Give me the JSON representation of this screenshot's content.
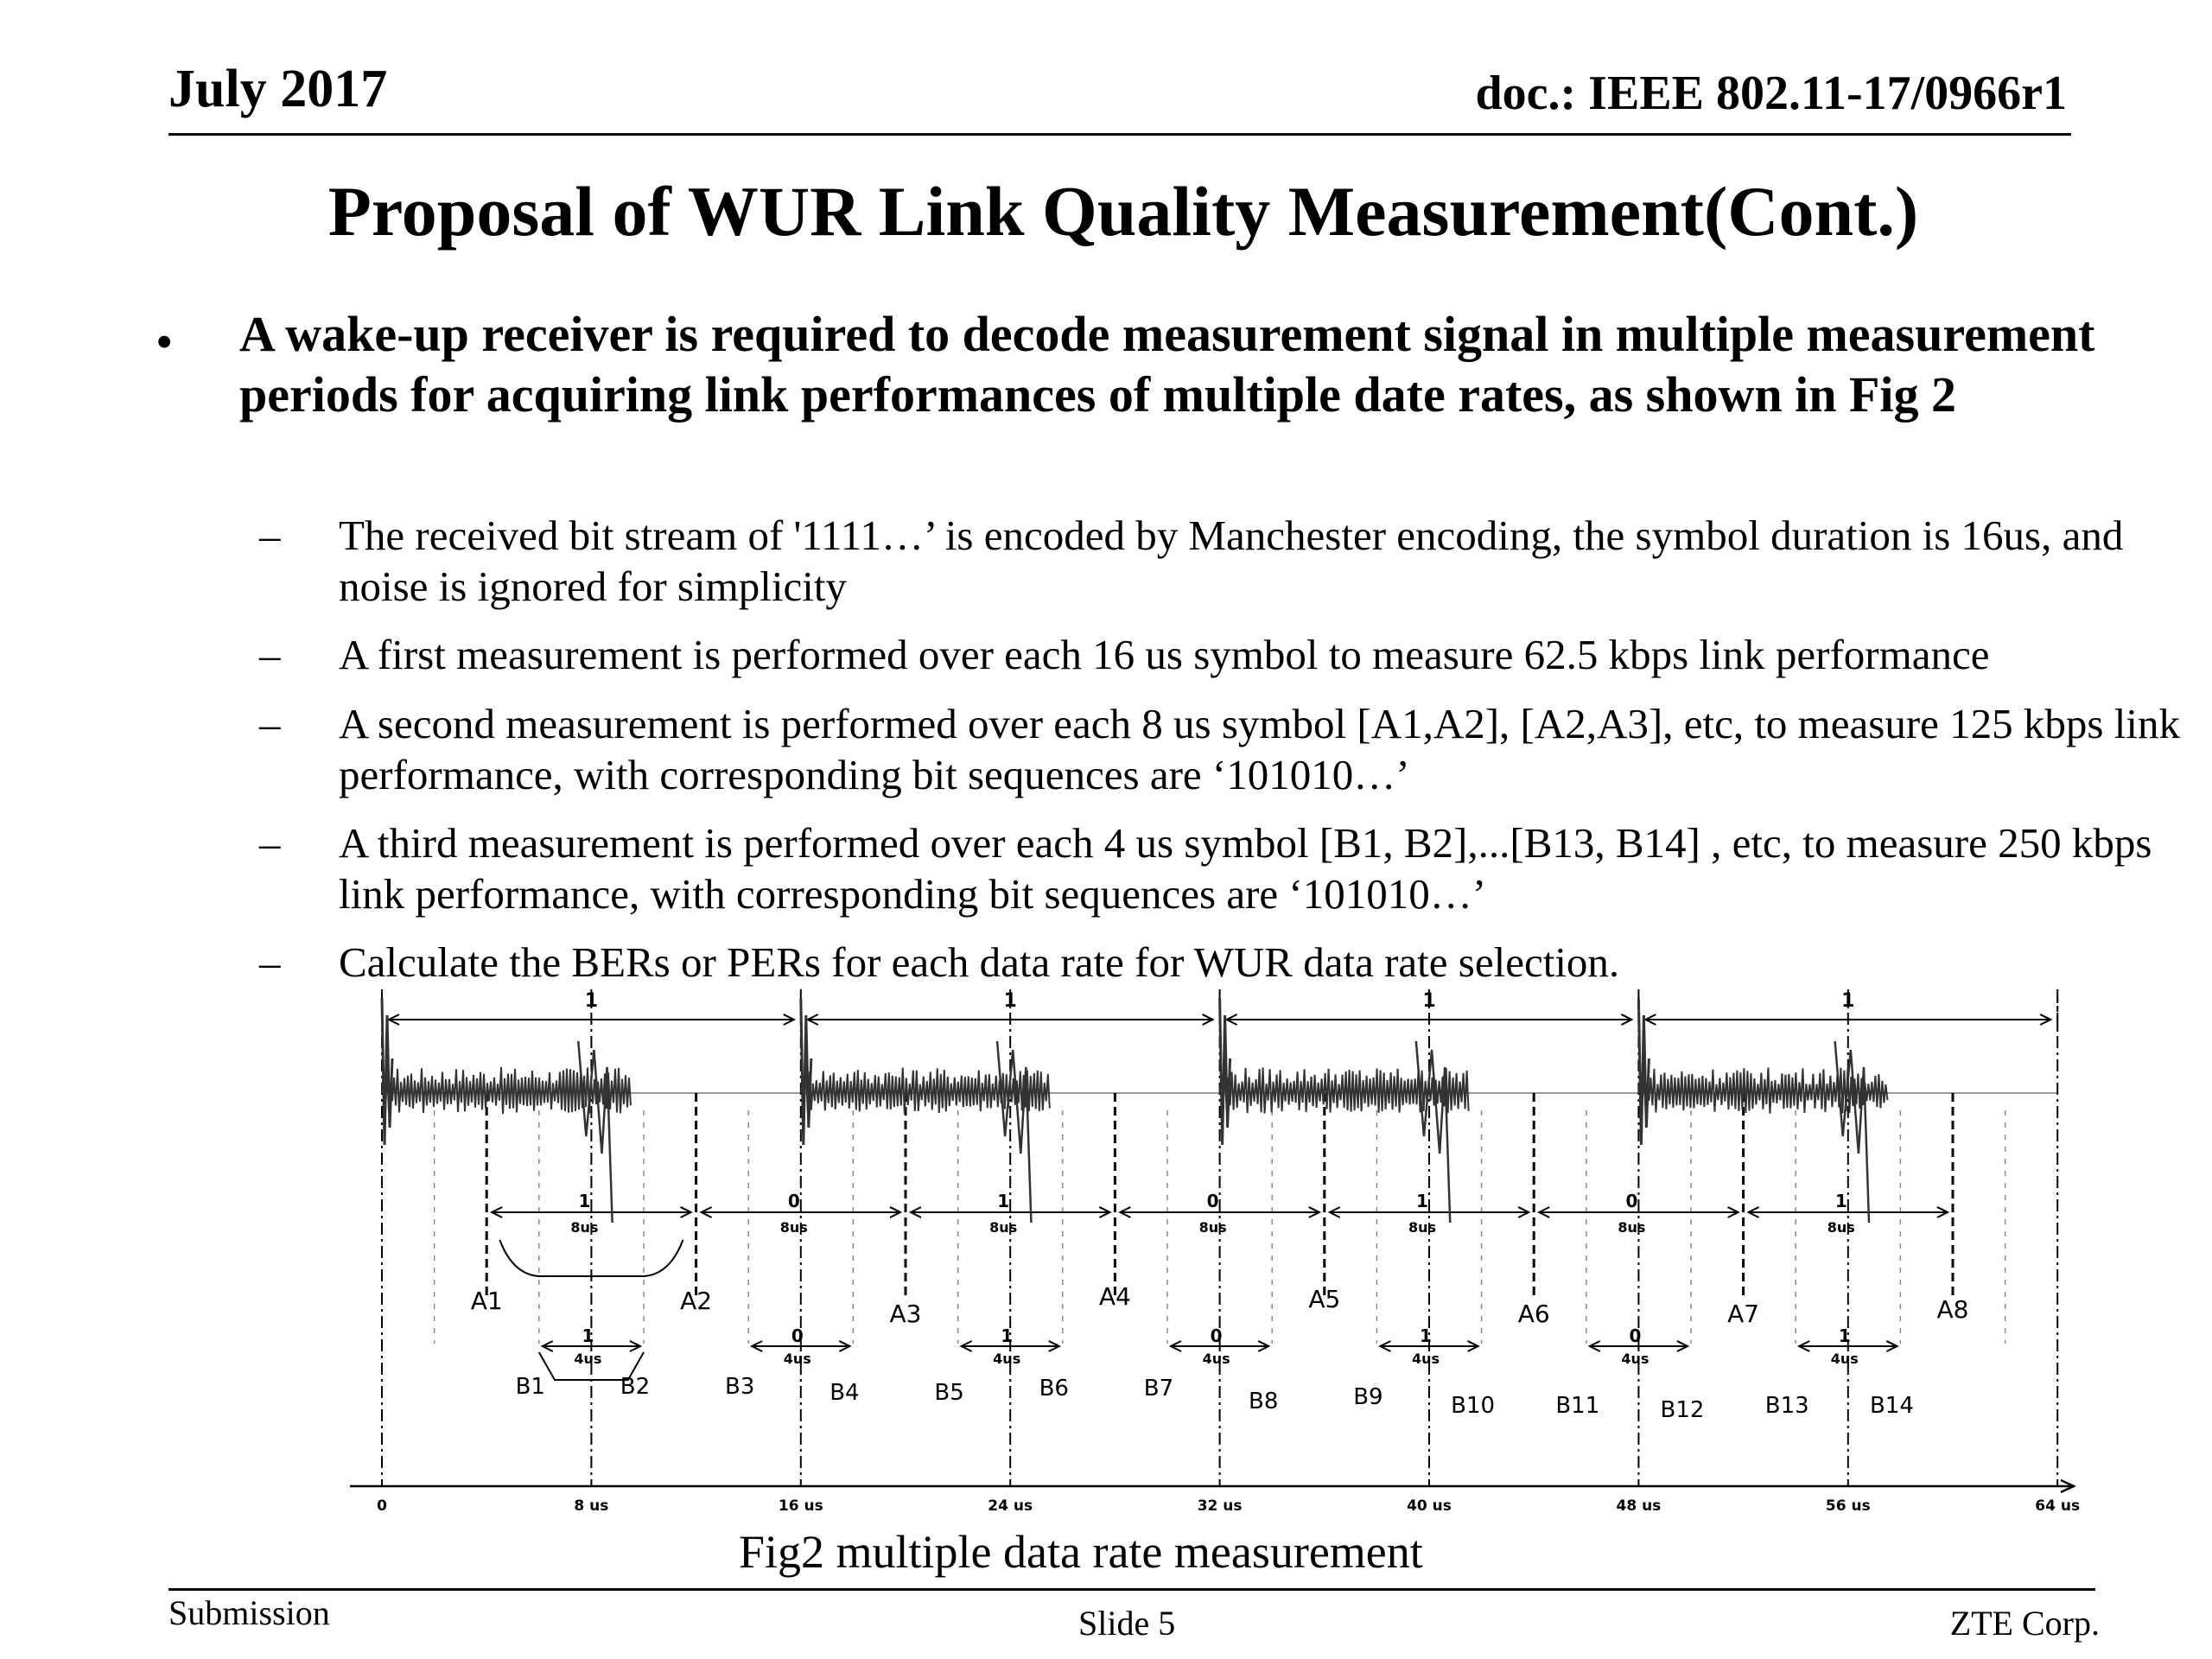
{
  "header": {
    "date": "July 2017",
    "doc": "doc.: IEEE 802.11-17/0966r1"
  },
  "title": "Proposal of WUR Link Quality Measurement(Cont.)",
  "bullet": {
    "marker": "•",
    "text": "A wake-up receiver is required to decode measurement signal in multiple measurement periods for acquiring link performances of multiple date rates, as shown in Fig 2"
  },
  "subbullets": [
    {
      "dash": "–",
      "text": "The received bit stream of  '1111…’ is encoded by Manchester encoding, the symbol duration is 16us, and noise is ignored for simplicity"
    },
    {
      "dash": "–",
      "text": "A first measurement is performed over each 16 us symbol to measure 62.5 kbps link performance"
    },
    {
      "dash": "–",
      "text": "A second measurement is performed over each 8 us symbol [A1,A2], [A2,A3], etc, to measure 125 kbps link performance, with corresponding bit sequences are ‘101010…’"
    },
    {
      "dash": "–",
      "text": "A third measurement is performed over each 4 us symbol [B1, B2],...[B13, B14] , etc, to measure 250 kbps link performance, with corresponding bit sequences are ‘101010…’"
    },
    {
      "dash": "–",
      "text": "Calculate the BERs or PERs for each data rate for WUR data rate selection."
    }
  ],
  "figure": {
    "symbol_bits": [
      "1",
      "1",
      "1",
      "1"
    ],
    "bits_8us": [
      "1",
      "0",
      "1",
      "0",
      "1",
      "0",
      "1"
    ],
    "label_8us": "8us",
    "a_labels": [
      "A1",
      "A2",
      "A3",
      "A4",
      "A5",
      "A6",
      "A7",
      "A8"
    ],
    "bits_4us": [
      "1",
      "0",
      "1",
      "0",
      "1",
      "0",
      "1"
    ],
    "label_4us": "4us",
    "b_labels": [
      "B1",
      "B2",
      "B3",
      "B4",
      "B5",
      "B6",
      "B7",
      "B8",
      "B9",
      "B10",
      "B11",
      "B12",
      "B13",
      "B14"
    ],
    "axis_ticks": [
      "0",
      "8 us",
      "16 us",
      "24 us",
      "32 us",
      "40 us",
      "48 us",
      "56 us",
      "64 us"
    ],
    "caption": "Fig2  multiple data rate measurement"
  },
  "footer": {
    "left": "Submission",
    "center": "Slide 5",
    "right": "ZTE Corp."
  }
}
